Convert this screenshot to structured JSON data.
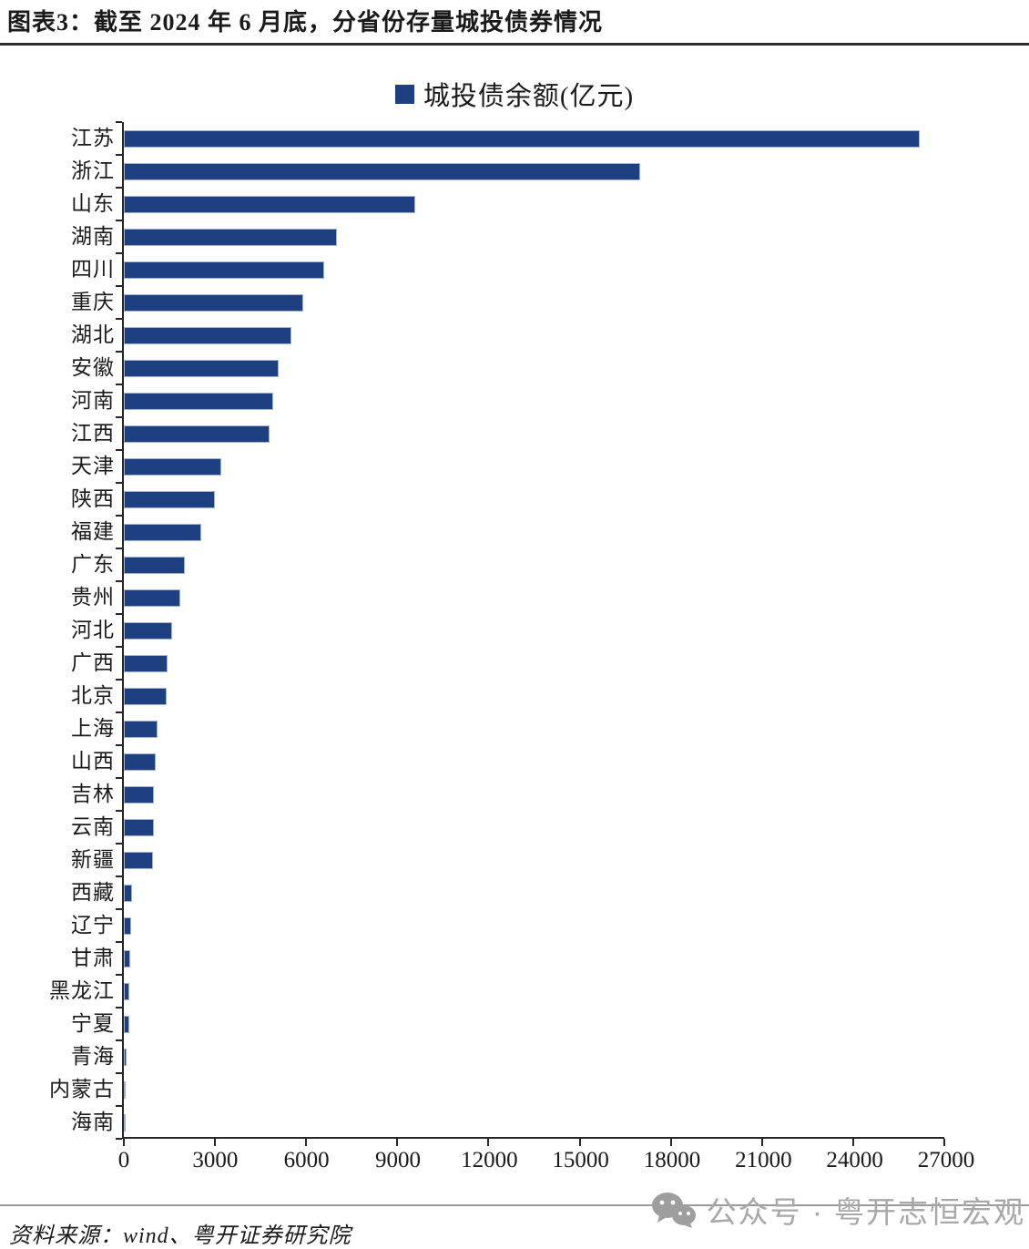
{
  "header": {
    "title": "图表3：截至 2024 年 6 月底，分省份存量城投债券情况"
  },
  "chart_data": {
    "type": "bar",
    "orientation": "horizontal",
    "legend": [
      {
        "label": "城投债余额(亿元)",
        "color": "#1F4080"
      }
    ],
    "legend_position": "top-center",
    "grid": false,
    "xlim": [
      0,
      27000
    ],
    "x_ticks": [
      0,
      3000,
      6000,
      9000,
      12000,
      15000,
      18000,
      21000,
      24000,
      27000
    ],
    "categories": [
      "江苏",
      "浙江",
      "山东",
      "湖南",
      "四川",
      "重庆",
      "湖北",
      "安徽",
      "河南",
      "江西",
      "天津",
      "陕西",
      "福建",
      "广东",
      "贵州",
      "河北",
      "广西",
      "北京",
      "上海",
      "山西",
      "吉林",
      "云南",
      "新疆",
      "西藏",
      "辽宁",
      "甘肃",
      "黑龙江",
      "宁夏",
      "青海",
      "内蒙古",
      "海南"
    ],
    "values": [
      26200,
      17000,
      9600,
      7000,
      6600,
      5900,
      5500,
      5100,
      4900,
      4800,
      3200,
      3000,
      2550,
      2000,
      1850,
      1600,
      1450,
      1400,
      1100,
      1050,
      1000,
      1000,
      970,
      270,
      230,
      220,
      190,
      170,
      100,
      50,
      10
    ]
  },
  "colors": {
    "bar_fill": "#1F4080",
    "bar_border": "#9FB1D4",
    "axis": "#262626",
    "title_rule": "#2e2e2e",
    "footer_rule": "#9a9a9a",
    "watermark_gray": "#a8a8a8"
  },
  "footer": {
    "source_label": "资料来源：wind、粤开证券研究院",
    "watermark_icon": "wechat-icon",
    "watermark_text": "公众号 · 粤开志恒宏观"
  }
}
